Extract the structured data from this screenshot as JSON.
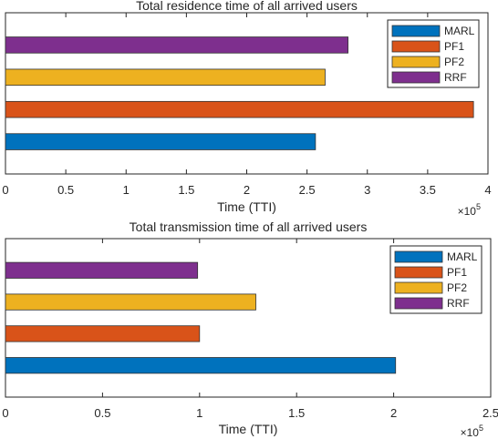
{
  "chart_data": [
    {
      "type": "bar",
      "orientation": "horizontal",
      "title": "Total residence time of all arrived users",
      "xlabel": "Time (TTI)",
      "x_exponent_base": "×10",
      "x_exponent_power": "5",
      "xlim": [
        0,
        4
      ],
      "xticks": [
        0,
        0.5,
        1,
        1.5,
        2,
        2.5,
        3,
        3.5,
        4
      ],
      "xtick_labels": [
        "0",
        "0.5",
        "1",
        "1.5",
        "2",
        "2.5",
        "3",
        "3.5",
        "4"
      ],
      "grid": false,
      "legend_position": "top-right",
      "bars": [
        {
          "name": "RRF",
          "value": 2.84,
          "color": "#7E2F8E"
        },
        {
          "name": "PF2",
          "value": 2.65,
          "color": "#EDB120"
        },
        {
          "name": "PF1",
          "value": 3.88,
          "color": "#D95319"
        },
        {
          "name": "MARL",
          "value": 2.57,
          "color": "#0072BD"
        }
      ],
      "legend": [
        {
          "name": "MARL",
          "color": "#0072BD"
        },
        {
          "name": "PF1",
          "color": "#D95319"
        },
        {
          "name": "PF2",
          "color": "#EDB120"
        },
        {
          "name": "RRF",
          "color": "#7E2F8E"
        }
      ]
    },
    {
      "type": "bar",
      "orientation": "horizontal",
      "title": "Total transmission time of all arrived users",
      "xlabel": "Time (TTI)",
      "x_exponent_base": "×10",
      "x_exponent_power": "5",
      "xlim": [
        0,
        2.5
      ],
      "xticks": [
        0,
        0.5,
        1,
        1.5,
        2,
        2.5
      ],
      "xtick_labels": [
        "0",
        "0.5",
        "1",
        "1.5",
        "2",
        "2.5"
      ],
      "grid": false,
      "legend_position": "top-right",
      "bars": [
        {
          "name": "RRF",
          "value": 0.99,
          "color": "#7E2F8E"
        },
        {
          "name": "PF2",
          "value": 1.29,
          "color": "#EDB120"
        },
        {
          "name": "PF1",
          "value": 1.0,
          "color": "#D95319"
        },
        {
          "name": "MARL",
          "value": 2.01,
          "color": "#0072BD"
        }
      ],
      "legend": [
        {
          "name": "MARL",
          "color": "#0072BD"
        },
        {
          "name": "PF1",
          "color": "#D95319"
        },
        {
          "name": "PF2",
          "color": "#EDB120"
        },
        {
          "name": "RRF",
          "color": "#7E2F8E"
        }
      ]
    }
  ]
}
